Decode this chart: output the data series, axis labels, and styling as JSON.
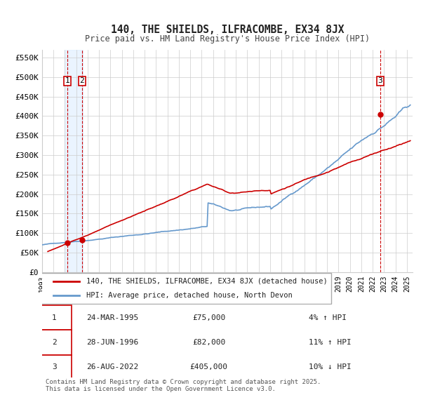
{
  "title": "140, THE SHIELDS, ILFRACOMBE, EX34 8JX",
  "subtitle": "Price paid vs. HM Land Registry's House Price Index (HPI)",
  "legend_line1": "140, THE SHIELDS, ILFRACOMBE, EX34 8JX (detached house)",
  "legend_line2": "HPI: Average price, detached house, North Devon",
  "transaction_color": "#cc0000",
  "hpi_color": "#6699cc",
  "vline_color": "#cc0000",
  "vline_shade_color": "#ddeeff",
  "grid_color": "#cccccc",
  "background_color": "#ffffff",
  "transactions": [
    {
      "date_year": 1995.23,
      "price": 75000,
      "label": "1"
    },
    {
      "date_year": 1996.49,
      "price": 82000,
      "label": "2"
    },
    {
      "date_year": 2022.65,
      "price": 405000,
      "label": "3"
    }
  ],
  "transaction_table": [
    {
      "num": "1",
      "date": "24-MAR-1995",
      "price": "£75,000",
      "pct": "4% ↑ HPI"
    },
    {
      "num": "2",
      "date": "28-JUN-1996",
      "price": "£82,000",
      "pct": "11% ↑ HPI"
    },
    {
      "num": "3",
      "date": "26-AUG-2022",
      "price": "£405,000",
      "pct": "10% ↓ HPI"
    }
  ],
  "ylim": [
    0,
    570000
  ],
  "xlim_start": 1993.0,
  "xlim_end": 2025.5,
  "yticks": [
    0,
    50000,
    100000,
    150000,
    200000,
    250000,
    300000,
    350000,
    400000,
    450000,
    500000,
    550000
  ],
  "ytick_labels": [
    "£0",
    "£50K",
    "£100K",
    "£150K",
    "£200K",
    "£250K",
    "£300K",
    "£350K",
    "£400K",
    "£450K",
    "£500K",
    "£550K"
  ],
  "footer": "Contains HM Land Registry data © Crown copyright and database right 2025.\nThis data is licensed under the Open Government Licence v3.0.",
  "vline_shade_regions": [
    {
      "x_start": 1995.0,
      "x_end": 1996.6
    }
  ],
  "vline_positions": [
    1995.23,
    1996.49,
    2022.65
  ]
}
